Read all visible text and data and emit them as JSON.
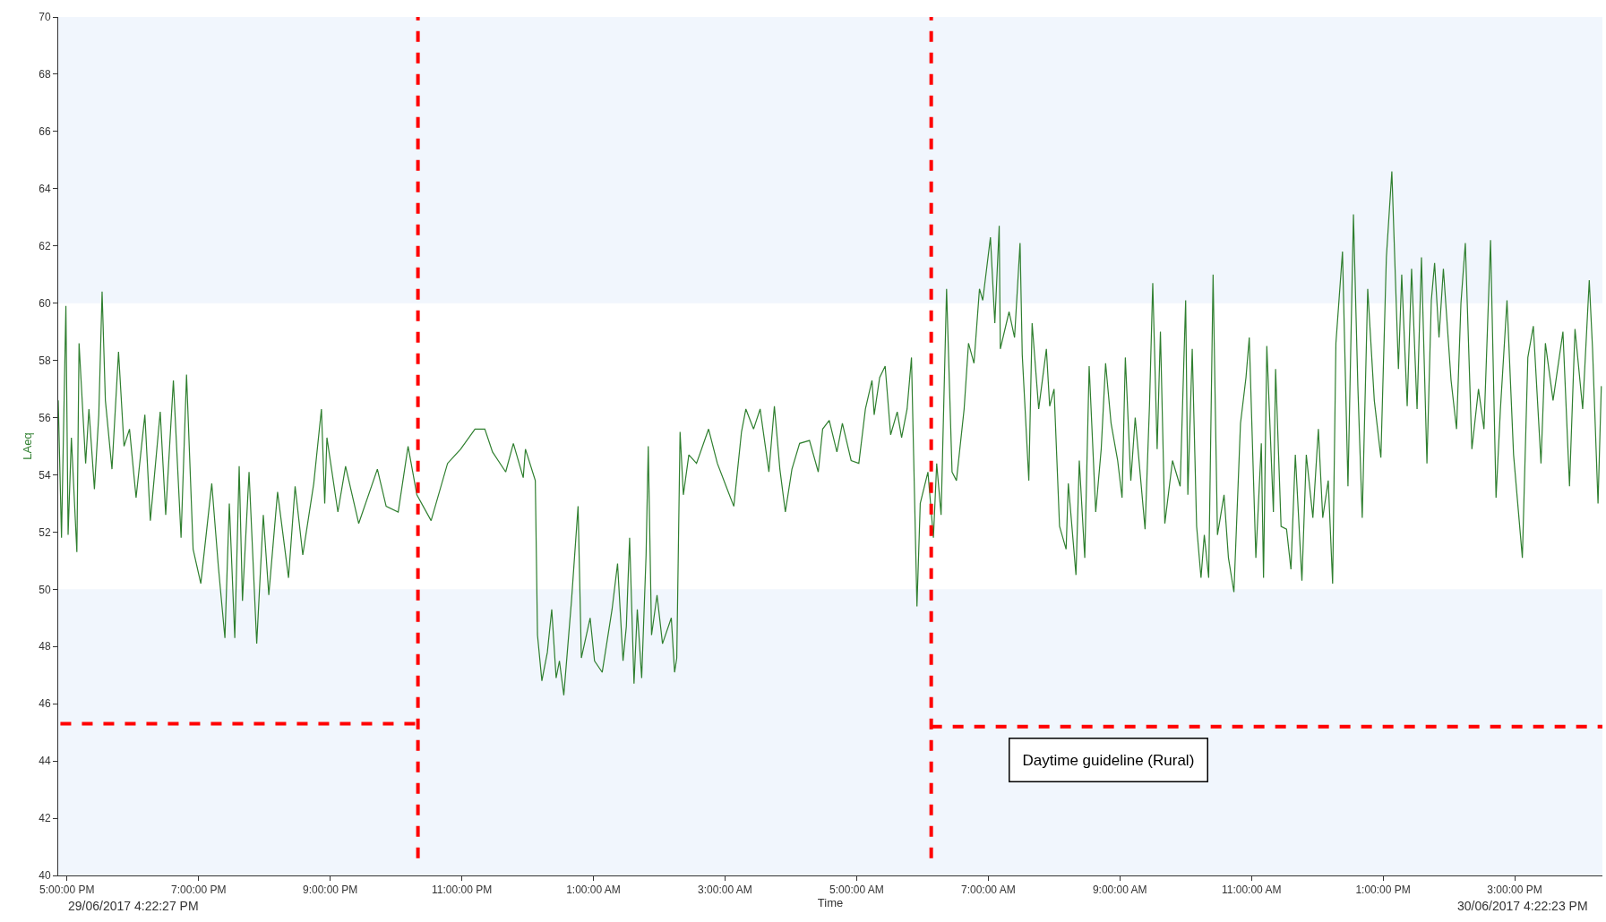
{
  "chart_data": {
    "type": "line",
    "xlabel": "Time",
    "ylabel": "LAeq",
    "xlim": [
      "2017-06-29T16:52",
      "2017-06-30T16:20"
    ],
    "ylim": [
      40,
      70
    ],
    "xticks": [
      {
        "value": "2017-06-29T17:00",
        "label": "5:00:00 PM"
      },
      {
        "value": "2017-06-29T19:00",
        "label": "7:00:00 PM"
      },
      {
        "value": "2017-06-29T21:00",
        "label": "9:00:00 PM"
      },
      {
        "value": "2017-06-29T23:00",
        "label": "11:00:00 PM"
      },
      {
        "value": "2017-06-30T01:00",
        "label": "1:00:00 AM"
      },
      {
        "value": "2017-06-30T03:00",
        "label": "3:00:00 AM"
      },
      {
        "value": "2017-06-30T05:00",
        "label": "5:00:00 AM"
      },
      {
        "value": "2017-06-30T07:00",
        "label": "7:00:00 AM"
      },
      {
        "value": "2017-06-30T09:00",
        "label": "9:00:00 AM"
      },
      {
        "value": "2017-06-30T11:00",
        "label": "11:00:00 AM"
      },
      {
        "value": "2017-06-30T13:00",
        "label": "1:00:00 PM"
      },
      {
        "value": "2017-06-30T15:00",
        "label": "3:00:00 PM"
      }
    ],
    "yticks": [
      40,
      42,
      44,
      46,
      48,
      50,
      52,
      54,
      56,
      58,
      60,
      62,
      64,
      66,
      68,
      70
    ],
    "grid": false,
    "series": [
      {
        "color": "#2f7f2f",
        "line_style": "solid",
        "x": [
          "2017-06-29T16:52",
          "2017-06-29T16:55",
          "2017-06-29T16:59",
          "2017-06-29T17:01",
          "2017-06-29T17:04",
          "2017-06-29T17:09",
          "2017-06-29T17:11",
          "2017-06-29T17:17",
          "2017-06-29T17:20",
          "2017-06-29T17:25",
          "2017-06-29T17:29",
          "2017-06-29T17:32",
          "2017-06-29T17:35",
          "2017-06-29T17:41",
          "2017-06-29T17:47",
          "2017-06-29T17:52",
          "2017-06-29T17:57",
          "2017-06-29T18:03",
          "2017-06-29T18:11",
          "2017-06-29T18:16",
          "2017-06-29T18:25",
          "2017-06-29T18:30",
          "2017-06-29T18:37",
          "2017-06-29T18:44",
          "2017-06-29T18:49",
          "2017-06-29T18:55",
          "2017-06-29T19:02",
          "2017-06-29T19:12",
          "2017-06-29T19:18",
          "2017-06-29T19:24",
          "2017-06-29T19:28",
          "2017-06-29T19:33",
          "2017-06-29T19:37",
          "2017-06-29T19:40",
          "2017-06-29T19:46",
          "2017-06-29T19:53",
          "2017-06-29T19:59",
          "2017-06-29T20:04",
          "2017-06-29T20:12",
          "2017-06-29T20:22",
          "2017-06-29T20:28",
          "2017-06-29T20:35",
          "2017-06-29T20:45",
          "2017-06-29T20:52",
          "2017-06-29T20:55",
          "2017-06-29T20:57",
          "2017-06-29T21:07",
          "2017-06-29T21:14",
          "2017-06-29T21:26",
          "2017-06-29T21:43",
          "2017-06-29T21:51",
          "2017-06-29T22:02",
          "2017-06-29T22:11",
          "2017-06-29T22:19",
          "2017-06-29T22:32",
          "2017-06-29T22:47",
          "2017-06-29T22:59",
          "2017-06-29T23:12",
          "2017-06-29T23:21",
          "2017-06-29T23:28",
          "2017-06-29T23:40",
          "2017-06-29T23:47",
          "2017-06-29T23:56",
          "2017-06-29T23:58",
          "2017-06-30T00:07",
          "2017-06-30T00:09",
          "2017-06-30T00:13",
          "2017-06-30T00:18",
          "2017-06-30T00:22",
          "2017-06-30T00:26",
          "2017-06-30T00:29",
          "2017-06-30T00:33",
          "2017-06-30T00:40",
          "2017-06-30T00:46",
          "2017-06-30T00:49",
          "2017-06-30T00:57",
          "2017-06-30T01:01",
          "2017-06-30T01:08",
          "2017-06-30T01:17",
          "2017-06-30T01:22",
          "2017-06-30T01:27",
          "2017-06-30T01:30",
          "2017-06-30T01:33",
          "2017-06-30T01:37",
          "2017-06-30T01:40",
          "2017-06-30T01:44",
          "2017-06-30T01:48",
          "2017-06-30T01:50",
          "2017-06-30T01:53",
          "2017-06-30T01:58",
          "2017-06-30T02:03",
          "2017-06-30T02:11",
          "2017-06-30T02:14",
          "2017-06-30T02:16",
          "2017-06-30T02:19",
          "2017-06-30T02:22",
          "2017-06-30T02:27",
          "2017-06-30T02:34",
          "2017-06-30T02:45",
          "2017-06-30T02:53",
          "2017-06-30T03:02",
          "2017-06-30T03:08",
          "2017-06-30T03:15",
          "2017-06-30T03:19",
          "2017-06-30T03:26",
          "2017-06-30T03:32",
          "2017-06-30T03:40",
          "2017-06-30T03:45",
          "2017-06-30T03:50",
          "2017-06-30T03:55",
          "2017-06-30T04:01",
          "2017-06-30T04:08",
          "2017-06-30T04:17",
          "2017-06-30T04:25",
          "2017-06-30T04:29",
          "2017-06-30T04:35",
          "2017-06-30T04:42",
          "2017-06-30T04:47",
          "2017-06-30T04:55",
          "2017-06-30T05:02",
          "2017-06-30T05:08",
          "2017-06-30T05:14",
          "2017-06-30T05:16",
          "2017-06-30T05:21",
          "2017-06-30T05:26",
          "2017-06-30T05:31",
          "2017-06-30T05:37",
          "2017-06-30T05:41",
          "2017-06-30T05:46",
          "2017-06-30T05:50",
          "2017-06-30T05:55",
          "2017-06-30T05:58",
          "2017-06-30T06:05",
          "2017-06-30T06:10",
          "2017-06-30T06:13",
          "2017-06-30T06:17",
          "2017-06-30T06:22",
          "2017-06-30T06:27",
          "2017-06-30T06:31",
          "2017-06-30T06:38",
          "2017-06-30T06:42",
          "2017-06-30T06:47",
          "2017-06-30T06:52",
          "2017-06-30T06:55",
          "2017-06-30T07:02",
          "2017-06-30T07:06",
          "2017-06-30T07:10",
          "2017-06-30T07:11",
          "2017-06-30T07:19",
          "2017-06-30T07:24",
          "2017-06-30T07:29",
          "2017-06-30T07:31",
          "2017-06-30T07:37",
          "2017-06-30T07:40",
          "2017-06-30T07:46",
          "2017-06-30T07:53",
          "2017-06-30T07:56",
          "2017-06-30T08:00",
          "2017-06-30T08:05",
          "2017-06-30T08:11",
          "2017-06-30T08:13",
          "2017-06-30T08:20",
          "2017-06-30T08:23",
          "2017-06-30T08:28",
          "2017-06-30T08:32",
          "2017-06-30T08:38",
          "2017-06-30T08:43",
          "2017-06-30T08:47",
          "2017-06-30T08:52",
          "2017-06-30T08:58",
          "2017-06-30T09:02",
          "2017-06-30T09:05",
          "2017-06-30T09:10",
          "2017-06-30T09:14",
          "2017-06-30T09:23",
          "2017-06-30T09:27",
          "2017-06-30T09:30",
          "2017-06-30T09:34",
          "2017-06-30T09:37",
          "2017-06-30T09:41",
          "2017-06-30T09:48",
          "2017-06-30T09:55",
          "2017-06-30T10:00",
          "2017-06-30T10:02",
          "2017-06-30T10:06",
          "2017-06-30T10:10",
          "2017-06-30T10:14",
          "2017-06-30T10:17",
          "2017-06-30T10:21",
          "2017-06-30T10:25",
          "2017-06-30T10:29",
          "2017-06-30T10:35",
          "2017-06-30T10:39",
          "2017-06-30T10:44",
          "2017-06-30T10:50",
          "2017-06-30T10:55",
          "2017-06-30T10:58",
          "2017-06-30T11:04",
          "2017-06-30T11:09",
          "2017-06-30T11:11",
          "2017-06-30T11:14",
          "2017-06-30T11:20",
          "2017-06-30T11:22",
          "2017-06-30T11:27",
          "2017-06-30T11:32",
          "2017-06-30T11:36",
          "2017-06-30T11:40",
          "2017-06-30T11:46",
          "2017-06-30T11:50",
          "2017-06-30T11:56",
          "2017-06-30T12:01",
          "2017-06-30T12:05",
          "2017-06-30T12:10",
          "2017-06-30T12:14",
          "2017-06-30T12:17",
          "2017-06-30T12:23",
          "2017-06-30T12:28",
          "2017-06-30T12:33",
          "2017-06-30T12:37",
          "2017-06-30T12:41",
          "2017-06-30T12:46",
          "2017-06-30T12:52",
          "2017-06-30T12:58",
          "2017-06-30T13:03",
          "2017-06-30T13:08",
          "2017-06-30T13:10",
          "2017-06-30T13:14",
          "2017-06-30T13:17",
          "2017-06-30T13:22",
          "2017-06-30T13:26",
          "2017-06-30T13:31",
          "2017-06-30T13:35",
          "2017-06-30T13:40",
          "2017-06-30T13:44",
          "2017-06-30T13:47",
          "2017-06-30T13:51",
          "2017-06-30T13:55",
          "2017-06-30T14:02",
          "2017-06-30T14:07",
          "2017-06-30T14:11",
          "2017-06-30T14:15",
          "2017-06-30T14:21",
          "2017-06-30T14:27",
          "2017-06-30T14:32",
          "2017-06-30T14:38",
          "2017-06-30T14:43",
          "2017-06-30T14:47",
          "2017-06-30T14:53",
          "2017-06-30T14:59",
          "2017-06-30T15:07",
          "2017-06-30T15:12",
          "2017-06-30T15:17",
          "2017-06-30T15:24",
          "2017-06-30T15:28",
          "2017-06-30T15:35",
          "2017-06-30T15:44",
          "2017-06-30T15:50",
          "2017-06-30T15:55",
          "2017-06-30T16:02",
          "2017-06-30T16:08",
          "2017-06-30T16:11",
          "2017-06-30T16:16",
          "2017-06-30T16:19"
        ],
        "values": [
          56.6,
          51.8,
          59.9,
          51.9,
          55.3,
          51.3,
          58.6,
          54.4,
          56.3,
          53.5,
          56.1,
          60.4,
          56.6,
          54.2,
          58.3,
          55.0,
          55.6,
          53.2,
          56.1,
          52.4,
          56.2,
          52.6,
          57.3,
          51.8,
          57.5,
          51.4,
          50.2,
          53.7,
          50.8,
          48.3,
          53.0,
          48.3,
          54.3,
          49.6,
          54.1,
          48.1,
          52.6,
          49.8,
          53.4,
          50.4,
          53.6,
          51.2,
          53.7,
          56.3,
          53.0,
          55.3,
          52.7,
          54.3,
          52.3,
          54.2,
          52.9,
          52.7,
          55.0,
          53.3,
          52.4,
          54.4,
          54.9,
          55.6,
          55.6,
          54.8,
          54.1,
          55.1,
          53.9,
          54.9,
          53.8,
          48.4,
          46.8,
          47.8,
          49.3,
          46.9,
          47.5,
          46.3,
          49.6,
          52.9,
          47.6,
          49.0,
          47.5,
          47.1,
          49.3,
          50.9,
          47.5,
          48.7,
          51.8,
          46.7,
          49.3,
          46.9,
          51.2,
          55.0,
          48.4,
          49.8,
          48.1,
          49.0,
          47.1,
          47.6,
          55.5,
          53.3,
          54.7,
          54.4,
          55.6,
          54.4,
          53.5,
          52.9,
          55.5,
          56.3,
          55.6,
          56.3,
          54.1,
          56.4,
          54.2,
          52.7,
          54.2,
          55.1,
          55.2,
          54.1,
          55.6,
          55.9,
          54.8,
          55.8,
          54.5,
          54.4,
          56.3,
          57.3,
          56.1,
          57.4,
          57.8,
          55.4,
          56.2,
          55.3,
          56.3,
          58.1,
          49.4,
          53.0,
          54.1,
          51.8,
          54.4,
          52.6,
          60.5,
          54.1,
          53.8,
          56.3,
          58.6,
          57.9,
          60.5,
          60.1,
          62.3,
          59.3,
          62.7,
          58.4,
          59.7,
          58.8,
          62.1,
          58.2,
          53.8,
          59.3,
          56.3,
          58.4,
          56.4,
          57.0,
          52.2,
          51.4,
          53.7,
          50.5,
          54.5,
          51.1,
          57.8,
          52.7,
          54.9,
          57.9,
          55.8,
          54.5,
          53.2,
          58.1,
          53.8,
          56.0,
          52.1,
          56.4,
          60.7,
          54.9,
          59.0,
          52.3,
          54.5,
          53.6,
          60.1,
          53.3,
          58.4,
          52.2,
          50.4,
          51.9,
          50.4,
          61.0,
          51.9,
          53.3,
          51.1,
          49.9,
          55.8,
          57.4,
          58.8,
          51.1,
          55.1,
          50.4,
          58.5,
          52.7,
          57.7,
          52.2,
          52.1,
          50.7,
          54.7,
          50.3,
          54.7,
          52.5,
          55.6,
          52.5,
          53.8,
          50.2,
          58.6,
          61.8,
          53.6,
          63.1,
          57.1,
          52.5,
          60.5,
          56.6,
          54.6,
          61.6,
          64.6,
          62.3,
          57.7,
          61.0,
          56.4,
          61.2,
          56.3,
          61.6,
          54.4,
          60.1,
          61.4,
          58.8,
          61.2,
          57.3,
          55.6,
          60.0,
          62.1,
          54.9,
          57.0,
          55.6,
          62.2,
          53.2,
          56.3,
          60.1,
          54.7,
          51.1,
          58.1,
          59.2,
          54.4,
          58.6,
          56.6,
          59.0,
          53.6,
          59.1,
          56.3,
          60.8,
          58.4,
          53.0,
          57.1
        ]
      },
      {
        "color": "#ff0000",
        "line_style": "dashed",
        "x": [
          "2017-06-29T16:54",
          "2017-06-29T22:20"
        ],
        "values": [
          45.3,
          45.3
        ]
      },
      {
        "color": "#ff0000",
        "line_style": "dashed",
        "x": [
          "2017-06-30T06:08",
          "2017-06-30T16:20"
        ],
        "values": [
          45.2,
          45.2
        ]
      }
    ],
    "bands": [
      {
        "axis": "y",
        "from": 50,
        "to": 60,
        "color": "#ffffff"
      }
    ],
    "ref_lines": [
      {
        "axis": "x",
        "value": "2017-06-29T22:20",
        "color": "#ff0000",
        "line_style": "dashed"
      },
      {
        "axis": "x",
        "value": "2017-06-30T06:08",
        "color": "#ff0000",
        "line_style": "dashed"
      }
    ],
    "annotations": [
      "29/06/2017 4:22:27 PM",
      "30/06/2017 4:22:23 PM",
      "Daytime guideline (Rural)"
    ]
  }
}
